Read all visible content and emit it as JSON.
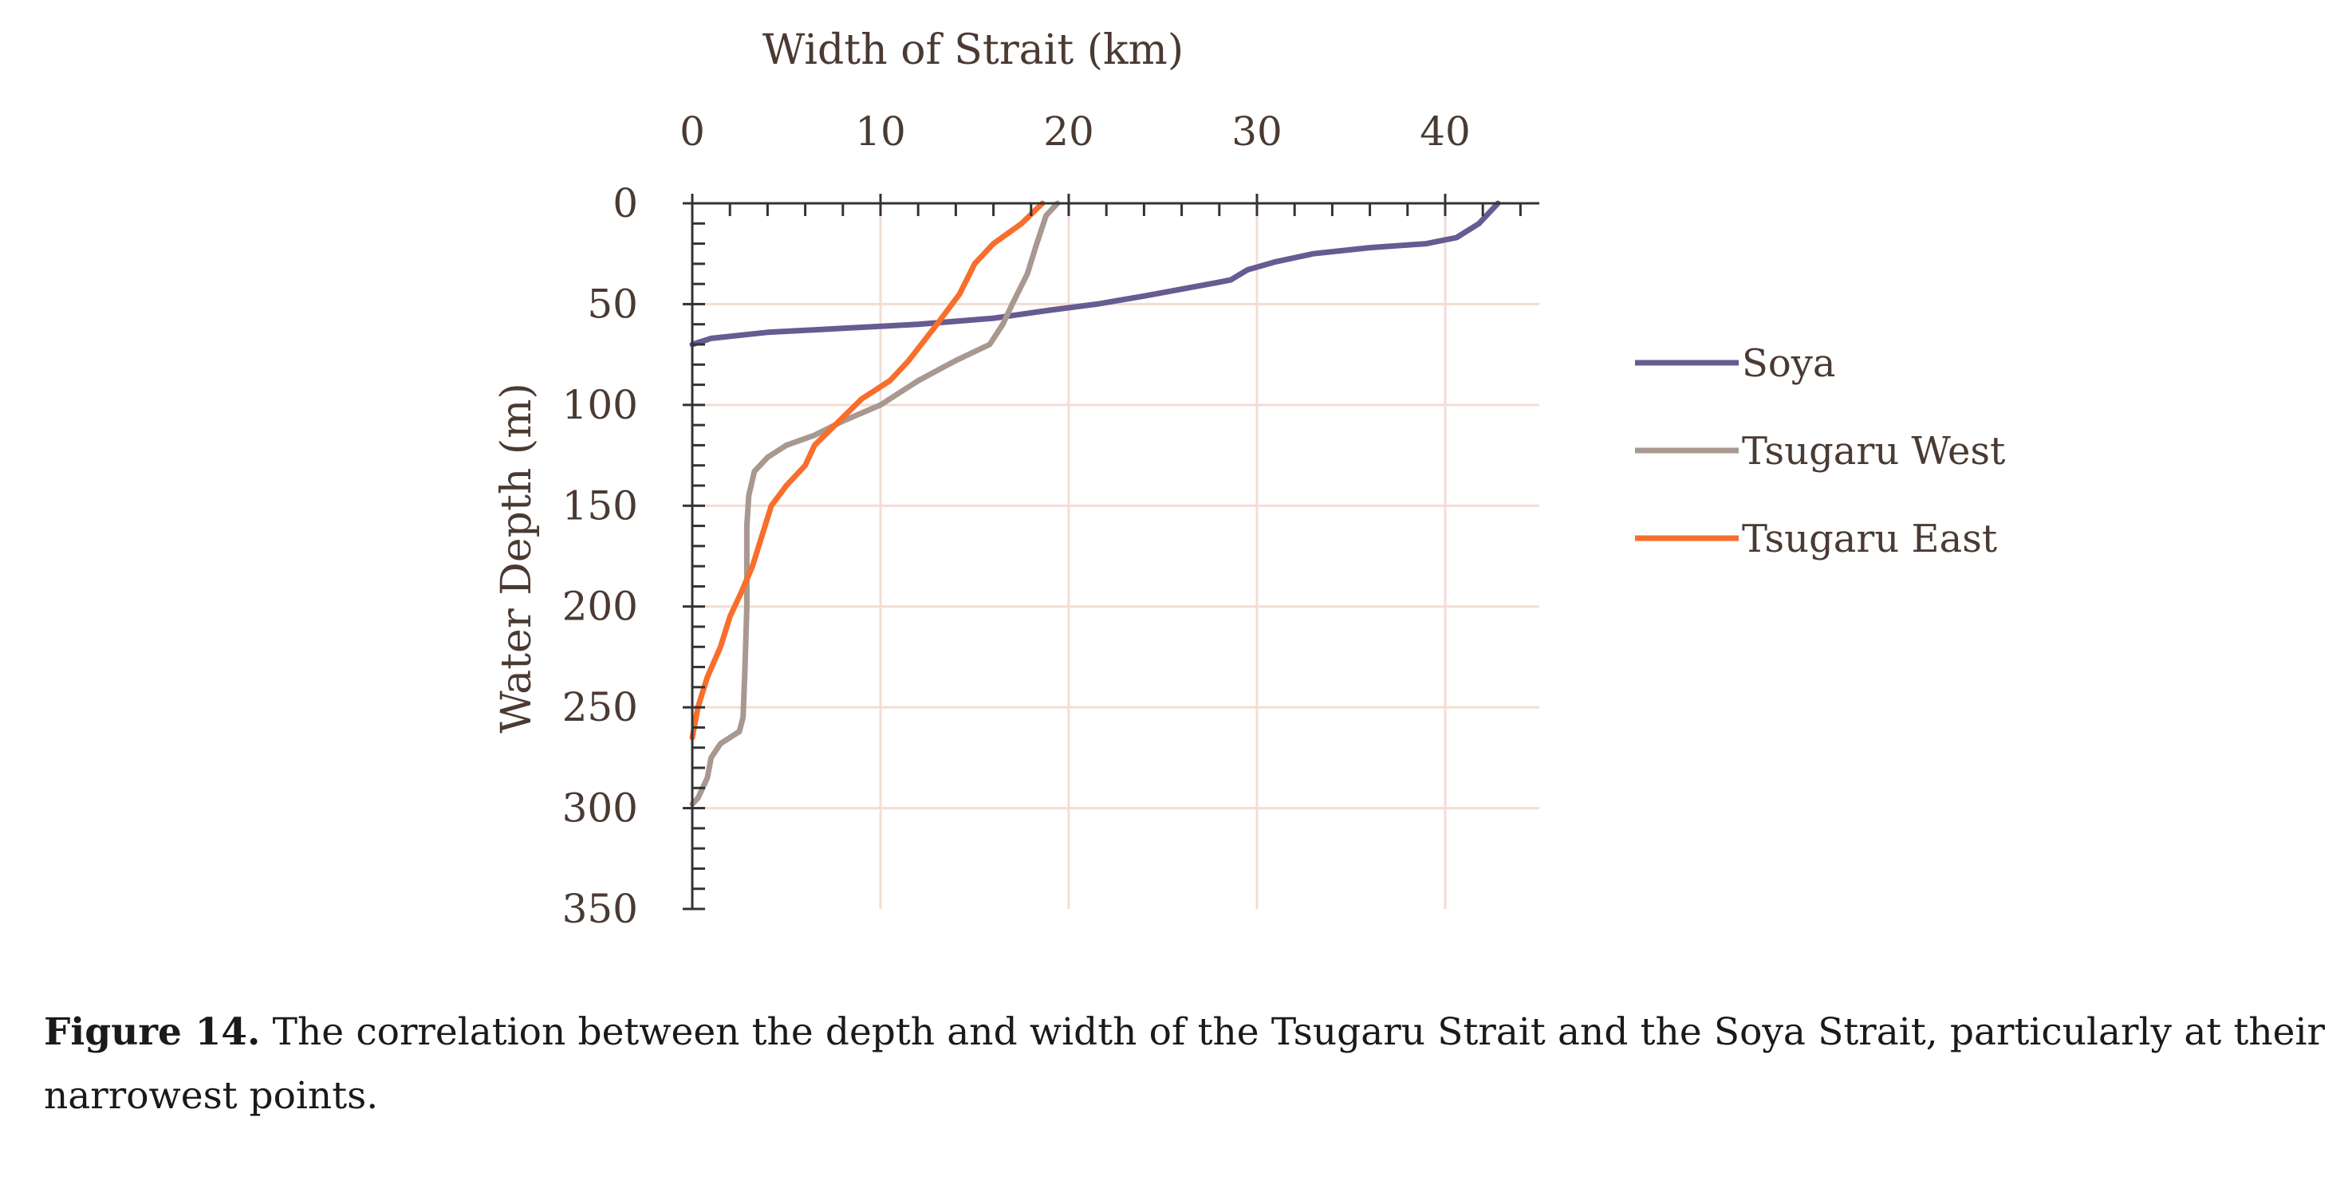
{
  "colors": {
    "soya": "#675b91",
    "tsugaru_west": "#a89890",
    "tsugaru_east": "#f86e2c",
    "grid": "#f3ddd3",
    "axis": "#333333",
    "text": "#4a3a32"
  },
  "chart_data": {
    "type": "line",
    "xlabel": "Width of Strait (km)",
    "ylabel": "Water Depth (m)",
    "xlim": [
      0,
      45
    ],
    "ylim": [
      0,
      350
    ],
    "x_axis_position": "top",
    "y_axis_inverted": true,
    "x_ticks": [
      "0",
      "10",
      "20",
      "30",
      "40"
    ],
    "y_ticks": [
      "0",
      "50",
      "100",
      "150",
      "200",
      "250",
      "300",
      "350"
    ],
    "grid": true,
    "legend_position": "right",
    "series": [
      {
        "name": "Soya",
        "color_key": "soya",
        "points": [
          [
            42.8,
            0
          ],
          [
            41.8,
            10
          ],
          [
            40.6,
            17
          ],
          [
            39.0,
            20
          ],
          [
            36.0,
            22
          ],
          [
            33.0,
            25
          ],
          [
            31.0,
            29
          ],
          [
            29.5,
            33
          ],
          [
            28.6,
            38
          ],
          [
            27.5,
            40
          ],
          [
            24.0,
            46
          ],
          [
            21.5,
            50
          ],
          [
            19.0,
            53
          ],
          [
            16.0,
            57
          ],
          [
            12.0,
            60
          ],
          [
            8.0,
            62
          ],
          [
            4.0,
            64
          ],
          [
            1.0,
            67
          ],
          [
            0.0,
            70
          ]
        ]
      },
      {
        "name": "Tsugaru West",
        "color_key": "tsugaru_west",
        "points": [
          [
            19.4,
            0
          ],
          [
            18.8,
            6
          ],
          [
            18.3,
            20
          ],
          [
            17.8,
            35
          ],
          [
            17.0,
            50
          ],
          [
            16.5,
            60
          ],
          [
            15.8,
            70
          ],
          [
            14.0,
            78
          ],
          [
            12.0,
            88
          ],
          [
            10.0,
            100
          ],
          [
            8.0,
            108
          ],
          [
            6.5,
            115
          ],
          [
            5.0,
            120
          ],
          [
            4.0,
            126
          ],
          [
            3.3,
            133
          ],
          [
            3.0,
            145
          ],
          [
            2.9,
            160
          ],
          [
            2.9,
            200
          ],
          [
            2.8,
            230
          ],
          [
            2.7,
            255
          ],
          [
            2.5,
            262
          ],
          [
            1.5,
            268
          ],
          [
            1.0,
            275
          ],
          [
            0.8,
            285
          ],
          [
            0.3,
            295
          ],
          [
            0.0,
            298
          ]
        ]
      },
      {
        "name": "Tsugaru East",
        "color_key": "tsugaru_east",
        "points": [
          [
            18.6,
            0
          ],
          [
            17.5,
            10
          ],
          [
            16.0,
            20
          ],
          [
            15.0,
            30
          ],
          [
            14.2,
            45
          ],
          [
            13.0,
            60
          ],
          [
            11.5,
            78
          ],
          [
            10.5,
            88
          ],
          [
            9.0,
            97
          ],
          [
            7.8,
            108
          ],
          [
            6.5,
            120
          ],
          [
            6.0,
            130
          ],
          [
            5.0,
            140
          ],
          [
            4.2,
            150
          ],
          [
            3.7,
            165
          ],
          [
            3.2,
            180
          ],
          [
            2.6,
            193
          ],
          [
            2.0,
            205
          ],
          [
            1.5,
            220
          ],
          [
            0.8,
            235
          ],
          [
            0.3,
            250
          ],
          [
            0.0,
            265
          ]
        ]
      }
    ]
  },
  "caption": {
    "label": "Figure 14.",
    "text": " The correlation between the depth and width of the Tsugaru Strait and the Soya Strait, particularly at their narrowest points."
  }
}
